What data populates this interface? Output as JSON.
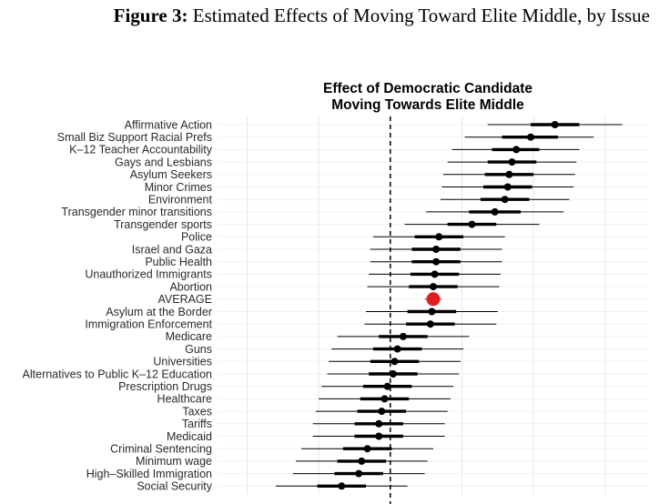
{
  "figure": {
    "label": "Figure 3:",
    "caption": "Estimated Effects of Moving Toward Elite Middle, by Issue"
  },
  "chart_data": {
    "type": "dot-and-whisker",
    "title_lines": [
      "Effect of Democratic Candidate",
      "Moving Towards Elite Middle"
    ],
    "xlabel": "",
    "ylabel": "",
    "xlim": [
      -0.12,
      0.18
    ],
    "reference_line": 0,
    "grid": true,
    "point_color": "#000000",
    "highlight_color": "#e02020",
    "highlight_label": "AVERAGE",
    "issues": [
      {
        "label": "Affirmative Action",
        "estimate": 0.115,
        "ci90": [
          0.098,
          0.132
        ],
        "ci95": [
          0.068,
          0.162
        ]
      },
      {
        "label": "Small Biz Support Racial Prefs",
        "estimate": 0.098,
        "ci90": [
          0.078,
          0.117
        ],
        "ci95": [
          0.052,
          0.142
        ]
      },
      {
        "label": "K–12 Teacher Accountability",
        "estimate": 0.088,
        "ci90": [
          0.071,
          0.104
        ],
        "ci95": [
          0.043,
          0.132
        ]
      },
      {
        "label": "Gays and Lesbians",
        "estimate": 0.085,
        "ci90": [
          0.068,
          0.102
        ],
        "ci95": [
          0.04,
          0.13
        ]
      },
      {
        "label": "Asylum Seekers",
        "estimate": 0.083,
        "ci90": [
          0.066,
          0.1
        ],
        "ci95": [
          0.037,
          0.129
        ]
      },
      {
        "label": "Minor Crimes",
        "estimate": 0.082,
        "ci90": [
          0.065,
          0.099
        ],
        "ci95": [
          0.036,
          0.128
        ]
      },
      {
        "label": "Environment",
        "estimate": 0.08,
        "ci90": [
          0.063,
          0.097
        ],
        "ci95": [
          0.035,
          0.125
        ]
      },
      {
        "label": "Transgender minor transitions",
        "estimate": 0.073,
        "ci90": [
          0.055,
          0.091
        ],
        "ci95": [
          0.025,
          0.121
        ]
      },
      {
        "label": "Transgender sports",
        "estimate": 0.057,
        "ci90": [
          0.04,
          0.074
        ],
        "ci95": [
          0.01,
          0.104
        ]
      },
      {
        "label": "Police",
        "estimate": 0.034,
        "ci90": [
          0.017,
          0.051
        ],
        "ci95": [
          -0.012,
          0.08
        ]
      },
      {
        "label": "Israel and Gaza",
        "estimate": 0.032,
        "ci90": [
          0.015,
          0.049
        ],
        "ci95": [
          -0.014,
          0.078
        ]
      },
      {
        "label": "Public Health",
        "estimate": 0.032,
        "ci90": [
          0.015,
          0.049
        ],
        "ci95": [
          -0.014,
          0.078
        ]
      },
      {
        "label": "Unauthorized Immigrants",
        "estimate": 0.031,
        "ci90": [
          0.014,
          0.048
        ],
        "ci95": [
          -0.015,
          0.077
        ]
      },
      {
        "label": "Abortion",
        "estimate": 0.03,
        "ci90": [
          0.013,
          0.047
        ],
        "ci95": [
          -0.016,
          0.076
        ]
      },
      {
        "label": "AVERAGE",
        "estimate": 0.03,
        "ci90": [
          0.026,
          0.034
        ],
        "ci95": [
          0.024,
          0.036
        ],
        "highlight": true
      },
      {
        "label": "Asylum at the Border",
        "estimate": 0.029,
        "ci90": [
          0.012,
          0.046
        ],
        "ci95": [
          -0.017,
          0.075
        ]
      },
      {
        "label": "Immigration Enforcement",
        "estimate": 0.028,
        "ci90": [
          0.011,
          0.045
        ],
        "ci95": [
          -0.018,
          0.074
        ]
      },
      {
        "label": "Medicare",
        "estimate": 0.009,
        "ci90": [
          -0.008,
          0.026
        ],
        "ci95": [
          -0.037,
          0.055
        ]
      },
      {
        "label": "Guns",
        "estimate": 0.005,
        "ci90": [
          -0.012,
          0.022
        ],
        "ci95": [
          -0.041,
          0.051
        ]
      },
      {
        "label": "Universities",
        "estimate": 0.003,
        "ci90": [
          -0.014,
          0.02
        ],
        "ci95": [
          -0.043,
          0.049
        ]
      },
      {
        "label": "Alternatives to Public K–12 Education",
        "estimate": 0.002,
        "ci90": [
          -0.015,
          0.019
        ],
        "ci95": [
          -0.044,
          0.048
        ]
      },
      {
        "label": "Prescription Drugs",
        "estimate": -0.002,
        "ci90": [
          -0.019,
          0.015
        ],
        "ci95": [
          -0.048,
          0.044
        ]
      },
      {
        "label": "Healthcare",
        "estimate": -0.004,
        "ci90": [
          -0.021,
          0.013
        ],
        "ci95": [
          -0.05,
          0.042
        ]
      },
      {
        "label": "Taxes",
        "estimate": -0.006,
        "ci90": [
          -0.023,
          0.011
        ],
        "ci95": [
          -0.052,
          0.04
        ]
      },
      {
        "label": "Tariffs",
        "estimate": -0.008,
        "ci90": [
          -0.025,
          0.009
        ],
        "ci95": [
          -0.054,
          0.038
        ]
      },
      {
        "label": "Medicaid",
        "estimate": -0.008,
        "ci90": [
          -0.025,
          0.009
        ],
        "ci95": [
          -0.054,
          0.038
        ]
      },
      {
        "label": "Criminal Sentencing",
        "estimate": -0.016,
        "ci90": [
          -0.033,
          0.001
        ],
        "ci95": [
          -0.062,
          0.03
        ]
      },
      {
        "label": "Minimum wage",
        "estimate": -0.02,
        "ci90": [
          -0.037,
          -0.003
        ],
        "ci95": [
          -0.066,
          0.026
        ]
      },
      {
        "label": "High–Skilled Immigration",
        "estimate": -0.022,
        "ci90": [
          -0.039,
          -0.005
        ],
        "ci95": [
          -0.068,
          0.024
        ]
      },
      {
        "label": "Social Security",
        "estimate": -0.034,
        "ci90": [
          -0.051,
          -0.017
        ],
        "ci95": [
          -0.08,
          0.012
        ]
      }
    ]
  }
}
